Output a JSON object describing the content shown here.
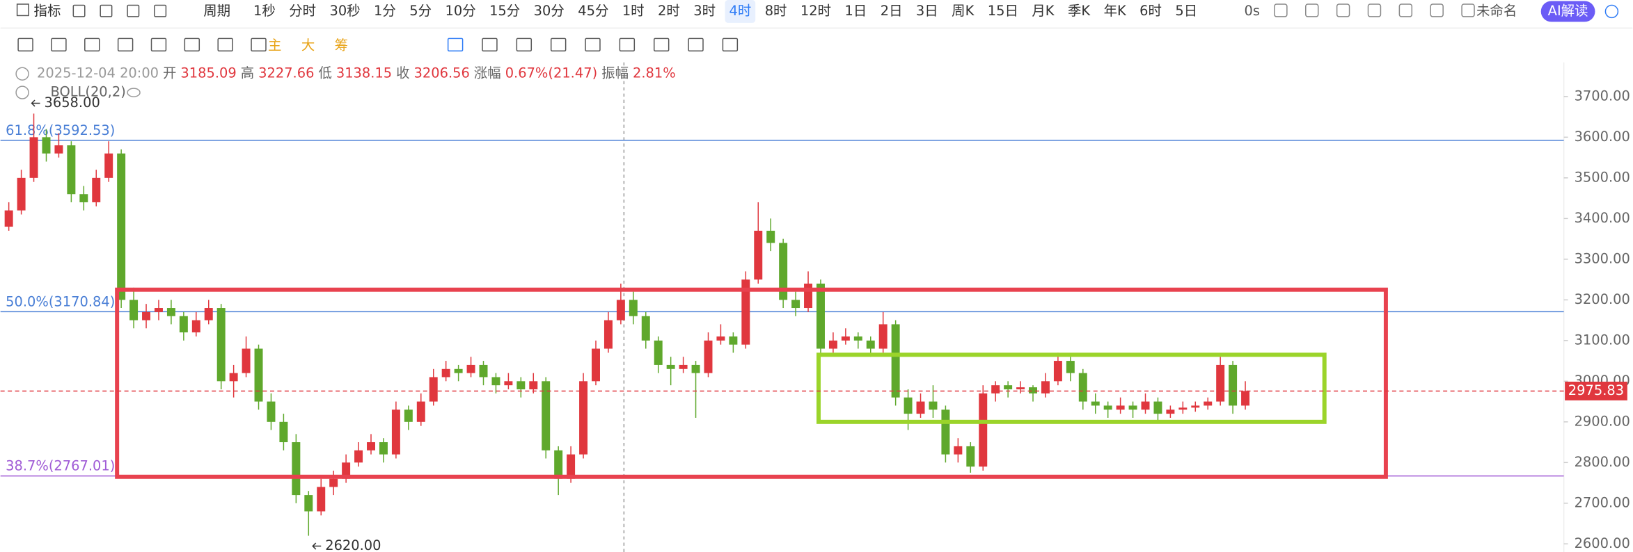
{
  "toolbar": {
    "indicator": "指标",
    "period": "周期",
    "periods": [
      "1秒",
      "分时",
      "30秒",
      "1分",
      "5分",
      "10分",
      "15分",
      "30分",
      "45分",
      "1时",
      "2时",
      "3时",
      "4时",
      "8时",
      "12时",
      "1日",
      "2日",
      "3日",
      "周K",
      "15日",
      "月K",
      "季K",
      "年K",
      "6时",
      "5日"
    ],
    "selected_period": 12,
    "refresh": "0s",
    "layout_name": "未命名",
    "ai_button": "AI解读",
    "tools": [
      "主",
      "大",
      "筹"
    ]
  },
  "info": {
    "items": [
      {
        "text": "2025-12-04 20:00",
        "color": "#999999"
      },
      {
        "text": "开",
        "color": "#666666"
      },
      {
        "text": "3185.09",
        "color": "#e0373e"
      },
      {
        "text": "高",
        "color": "#666666"
      },
      {
        "text": "3227.66",
        "color": "#e0373e"
      },
      {
        "text": "低",
        "color": "#666666"
      },
      {
        "text": "3138.15",
        "color": "#e0373e"
      },
      {
        "text": "收",
        "color": "#666666"
      },
      {
        "text": "3206.56",
        "color": "#e0373e"
      },
      {
        "text": "涨幅",
        "color": "#666666"
      },
      {
        "text": "0.67%(21.47)",
        "color": "#e0373e"
      },
      {
        "text": "振幅",
        "color": "#666666"
      },
      {
        "text": "2.81%",
        "color": "#e0373e"
      }
    ],
    "indicator": "BOLL(20,2)"
  },
  "chart_data": {
    "type": "candlestick",
    "up_color": "#e0373e",
    "down_color": "#5fa82c",
    "ylim": [
      2580,
      3784
    ],
    "yticks": [
      {
        "value": 2600,
        "label": "2600.00"
      },
      {
        "value": 2700,
        "label": "2700.00"
      },
      {
        "value": 2800,
        "label": "2800.00"
      },
      {
        "value": 2900,
        "label": "2900.00"
      },
      {
        "value": 3000,
        "label": "3000.00"
      },
      {
        "value": 3100,
        "label": "3100.00"
      },
      {
        "value": 3200,
        "label": "3200.00"
      },
      {
        "value": 3300,
        "label": "3300.00"
      },
      {
        "value": 3400,
        "label": "3400.00"
      },
      {
        "value": 3500,
        "label": "3500.00"
      },
      {
        "value": 3600,
        "label": "3600.00"
      },
      {
        "value": 3700,
        "label": "3700.00"
      }
    ],
    "candles": [
      [
        3380,
        3440,
        3370,
        3420
      ],
      [
        3420,
        3520,
        3410,
        3500
      ],
      [
        3500,
        3658,
        3490,
        3600
      ],
      [
        3600,
        3620,
        3540,
        3560
      ],
      [
        3560,
        3610,
        3550,
        3580
      ],
      [
        3580,
        3590,
        3440,
        3460
      ],
      [
        3460,
        3480,
        3420,
        3440
      ],
      [
        3440,
        3520,
        3430,
        3500
      ],
      [
        3500,
        3590,
        3490,
        3560
      ],
      [
        3560,
        3570,
        3180,
        3200
      ],
      [
        3200,
        3230,
        3130,
        3150
      ],
      [
        3150,
        3190,
        3130,
        3170
      ],
      [
        3170,
        3200,
        3150,
        3180
      ],
      [
        3180,
        3200,
        3140,
        3160
      ],
      [
        3160,
        3170,
        3100,
        3120
      ],
      [
        3120,
        3170,
        3110,
        3150
      ],
      [
        3150,
        3200,
        3140,
        3180
      ],
      [
        3180,
        3190,
        2980,
        3000
      ],
      [
        3000,
        3040,
        2960,
        3020
      ],
      [
        3020,
        3110,
        3010,
        3080
      ],
      [
        3080,
        3090,
        2930,
        2950
      ],
      [
        2950,
        2970,
        2880,
        2900
      ],
      [
        2900,
        2920,
        2830,
        2850
      ],
      [
        2850,
        2870,
        2700,
        2720
      ],
      [
        2720,
        2730,
        2620,
        2680
      ],
      [
        2680,
        2760,
        2670,
        2740
      ],
      [
        2740,
        2780,
        2720,
        2760
      ],
      [
        2760,
        2820,
        2750,
        2800
      ],
      [
        2800,
        2850,
        2790,
        2830
      ],
      [
        2830,
        2870,
        2820,
        2850
      ],
      [
        2850,
        2860,
        2800,
        2820
      ],
      [
        2820,
        2950,
        2810,
        2930
      ],
      [
        2930,
        2940,
        2880,
        2900
      ],
      [
        2900,
        2970,
        2890,
        2950
      ],
      [
        2950,
        3030,
        2940,
        3010
      ],
      [
        3010,
        3050,
        3000,
        3030
      ],
      [
        3030,
        3040,
        3000,
        3020
      ],
      [
        3020,
        3060,
        3010,
        3040
      ],
      [
        3040,
        3050,
        2990,
        3010
      ],
      [
        3010,
        3020,
        2970,
        2990
      ],
      [
        2990,
        3020,
        2980,
        3000
      ],
      [
        3000,
        3010,
        2960,
        2980
      ],
      [
        2980,
        3020,
        2970,
        3000
      ],
      [
        3000,
        3010,
        2810,
        2830
      ],
      [
        2830,
        2840,
        2720,
        2760
      ],
      [
        2760,
        2840,
        2750,
        2820
      ],
      [
        2820,
        3020,
        2810,
        3000
      ],
      [
        3000,
        3100,
        2990,
        3080
      ],
      [
        3080,
        3170,
        3070,
        3150
      ],
      [
        3150,
        3240,
        3140,
        3200
      ],
      [
        3200,
        3220,
        3140,
        3160
      ],
      [
        3160,
        3170,
        3080,
        3100
      ],
      [
        3100,
        3110,
        3020,
        3040
      ],
      [
        3040,
        3060,
        2990,
        3030
      ],
      [
        3030,
        3060,
        3020,
        3040
      ],
      [
        3040,
        3050,
        2910,
        3020
      ],
      [
        3020,
        3120,
        3010,
        3100
      ],
      [
        3100,
        3140,
        3090,
        3110
      ],
      [
        3110,
        3120,
        3070,
        3090
      ],
      [
        3090,
        3270,
        3080,
        3250
      ],
      [
        3250,
        3440,
        3240,
        3370
      ],
      [
        3370,
        3400,
        3320,
        3340
      ],
      [
        3340,
        3350,
        3180,
        3200
      ],
      [
        3200,
        3220,
        3160,
        3180
      ],
      [
        3180,
        3270,
        3170,
        3240
      ],
      [
        3240,
        3250,
        3060,
        3080
      ],
      [
        3080,
        3120,
        3070,
        3100
      ],
      [
        3100,
        3130,
        3090,
        3110
      ],
      [
        3110,
        3120,
        3080,
        3100
      ],
      [
        3100,
        3110,
        3060,
        3080
      ],
      [
        3080,
        3170,
        3070,
        3140
      ],
      [
        3140,
        3150,
        2940,
        2960
      ],
      [
        2960,
        2980,
        2880,
        2920
      ],
      [
        2920,
        2970,
        2910,
        2950
      ],
      [
        2950,
        2990,
        2910,
        2930
      ],
      [
        2930,
        2940,
        2800,
        2820
      ],
      [
        2820,
        2860,
        2800,
        2840
      ],
      [
        2840,
        2850,
        2775,
        2790
      ],
      [
        2790,
        2990,
        2780,
        2970
      ],
      [
        2970,
        3000,
        2950,
        2990
      ],
      [
        2990,
        3000,
        2960,
        2980
      ],
      [
        2980,
        3000,
        2970,
        2985
      ],
      [
        2985,
        2990,
        2950,
        2970
      ],
      [
        2970,
        3020,
        2960,
        3000
      ],
      [
        3000,
        3070,
        2990,
        3050
      ],
      [
        3050,
        3060,
        3000,
        3020
      ],
      [
        3020,
        3030,
        2930,
        2950
      ],
      [
        2950,
        2970,
        2920,
        2940
      ],
      [
        2940,
        2950,
        2910,
        2930
      ],
      [
        2930,
        2960,
        2920,
        2940
      ],
      [
        2940,
        2950,
        2910,
        2930
      ],
      [
        2930,
        2970,
        2920,
        2950
      ],
      [
        2950,
        2960,
        2900,
        2920
      ],
      [
        2920,
        2940,
        2910,
        2930
      ],
      [
        2930,
        2950,
        2920,
        2935
      ],
      [
        2935,
        2950,
        2925,
        2940
      ],
      [
        2940,
        2960,
        2930,
        2950
      ],
      [
        2950,
        3060,
        2940,
        3040
      ],
      [
        3040,
        3050,
        2920,
        2940
      ],
      [
        2940,
        3000,
        2930,
        2975.83
      ]
    ],
    "fib_lines": [
      {
        "label": "61.8%(3592.53)",
        "value": 3592.53,
        "color": "#4a7fd6"
      },
      {
        "label": "50.0%(3170.84)",
        "value": 3170.84,
        "color": "#4a7fd6"
      },
      {
        "label": "38.7%(2767.01)",
        "value": 2767.01,
        "color": "#a05cd6"
      }
    ],
    "last_price": {
      "label": "2975.83",
      "value": 2975.83,
      "color": "#e0373e"
    },
    "high_label": {
      "label": "3658.00",
      "value": 3658
    },
    "low_label": {
      "label": "2620.00",
      "value": 2620
    },
    "boxes": [
      {
        "color": "#e8424f",
        "top": 3225,
        "bottom": 2765
      },
      {
        "color": "#9bd42a",
        "top": 3065,
        "bottom": 2900
      }
    ]
  }
}
